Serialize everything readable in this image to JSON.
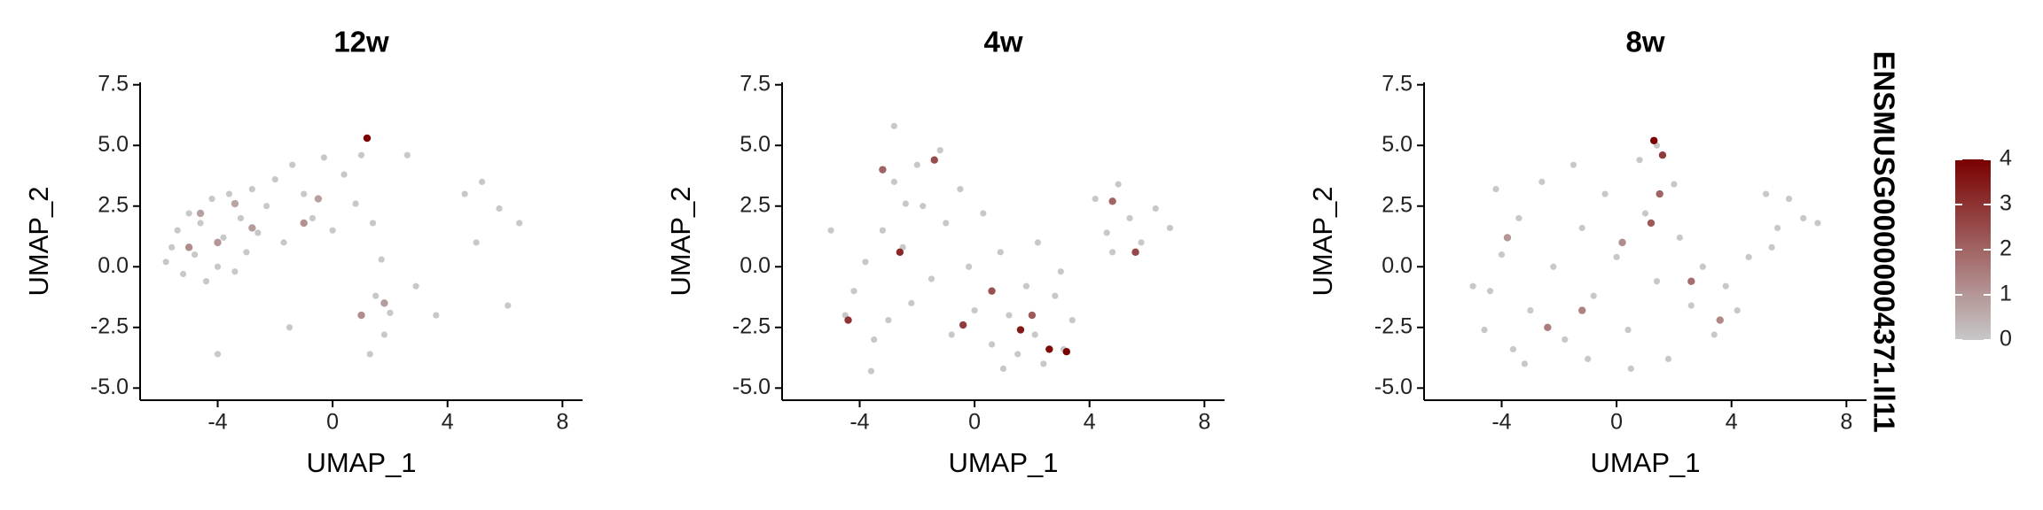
{
  "chart_data": [
    {
      "type": "scatter",
      "title": "12w",
      "xlabel": "UMAP_1",
      "ylabel": "UMAP_2",
      "xlim": [
        -6.7,
        8.7
      ],
      "ylim": [
        -5.5,
        7.6
      ],
      "xticks": [
        -4,
        0,
        4,
        8
      ],
      "yticks": [
        7.5,
        {
          "value": 5,
          "label": "5.0"
        },
        2.5,
        {
          "value": 0,
          "label": "0.0"
        },
        -2.5,
        {
          "value": -5,
          "label": "-5.0"
        }
      ],
      "x": [
        -5.8,
        -5.6,
        -5.4,
        -5.2,
        -5.0,
        -4.8,
        -4.6,
        -4.4,
        -4.2,
        -4.0,
        -3.8,
        -3.6,
        -3.4,
        -3.2,
        -3.0,
        -2.8,
        -2.6,
        -2.3,
        -2.0,
        -1.7,
        -1.4,
        -1.0,
        -0.7,
        -0.3,
        0.0,
        0.4,
        0.8,
        1.0,
        1.4,
        1.7,
        1.5,
        1.8,
        1.3,
        2.0,
        2.9,
        3.6,
        4.6,
        5.2,
        5.8,
        6.5,
        5.0,
        -4.0,
        -1.5,
        2.6,
        6.1,
        -4.6,
        -4.0,
        -3.4,
        -5.0,
        -2.8,
        -1.0,
        1.2,
        1.0,
        1.8,
        -0.5
      ],
      "y": [
        0.2,
        0.8,
        1.5,
        -0.3,
        2.2,
        0.5,
        1.8,
        -0.6,
        2.8,
        0.0,
        1.2,
        3.0,
        -0.2,
        2.0,
        0.6,
        3.2,
        1.4,
        2.5,
        3.6,
        1.0,
        4.2,
        3.0,
        2.0,
        4.5,
        1.5,
        3.8,
        2.6,
        4.6,
        1.8,
        0.3,
        -1.2,
        -2.8,
        -3.6,
        -1.9,
        -0.8,
        -2.0,
        3.0,
        3.5,
        2.4,
        1.8,
        1.0,
        -3.6,
        -2.5,
        4.6,
        -1.6,
        2.2,
        1.0,
        2.6,
        0.8,
        1.6,
        1.8,
        5.3,
        -2.0,
        -1.5,
        2.8
      ],
      "values": [
        0,
        0,
        0,
        0,
        0,
        0,
        0,
        0,
        0,
        0,
        0,
        0,
        0,
        0,
        0,
        0,
        0,
        0,
        0,
        0,
        0,
        0,
        0,
        0,
        0,
        0,
        0,
        0,
        0,
        0,
        0,
        0,
        0,
        0,
        0,
        0,
        0,
        0,
        0,
        0,
        0,
        0,
        0,
        0,
        0,
        0.8,
        1.0,
        0.7,
        1.2,
        0.9,
        1.1,
        4.0,
        1.2,
        0.9,
        0.8
      ]
    },
    {
      "type": "scatter",
      "title": "4w",
      "xlabel": "UMAP_1",
      "ylabel": "UMAP_2",
      "xlim": [
        -6.7,
        8.7
      ],
      "ylim": [
        -5.5,
        7.6
      ],
      "xticks": [
        -4,
        0,
        4,
        8
      ],
      "yticks": [
        7.5,
        {
          "value": 5,
          "label": "5.0"
        },
        2.5,
        {
          "value": 0,
          "label": "0.0"
        },
        -2.5,
        {
          "value": -5,
          "label": "-5.0"
        }
      ],
      "x": [
        -4.5,
        -4.2,
        -3.8,
        -3.5,
        -3.2,
        -3.0,
        -2.8,
        -2.5,
        -2.2,
        -2.0,
        -1.8,
        -1.5,
        -1.2,
        -1.0,
        -0.8,
        -0.5,
        -0.2,
        0.0,
        0.3,
        0.6,
        0.9,
        1.2,
        1.5,
        1.8,
        2.1,
        2.4,
        2.8,
        3.1,
        3.4,
        3.0,
        4.2,
        4.6,
        5.0,
        5.4,
        5.8,
        6.3,
        6.8,
        4.8,
        -2.8,
        -5.0,
        -3.6,
        1.0,
        2.2,
        -2.4,
        -4.4,
        -3.2,
        -1.4,
        -2.6,
        -0.4,
        1.6,
        2.6,
        3.2,
        2.0,
        4.8,
        5.6,
        0.6
      ],
      "y": [
        -2.0,
        -1.0,
        0.2,
        -3.0,
        1.5,
        -2.2,
        3.5,
        0.8,
        -1.5,
        4.2,
        2.5,
        -0.5,
        4.8,
        1.8,
        -2.8,
        3.2,
        0.0,
        -1.8,
        2.2,
        -3.2,
        0.6,
        -2.0,
        -3.6,
        -0.8,
        -2.8,
        -4.0,
        -1.2,
        -3.4,
        -2.2,
        -0.2,
        2.8,
        1.4,
        3.4,
        2.0,
        1.0,
        2.4,
        1.6,
        0.6,
        5.8,
        1.5,
        -4.3,
        -4.2,
        1.0,
        2.6,
        -2.2,
        4.0,
        4.4,
        0.6,
        -2.4,
        -2.6,
        -3.4,
        -3.5,
        -2.0,
        2.7,
        0.6,
        -1.0
      ],
      "values": [
        0,
        0,
        0,
        0,
        0,
        0,
        0,
        0,
        0,
        0,
        0,
        0,
        0,
        0,
        0,
        0,
        0,
        0,
        0,
        0,
        0,
        0,
        0,
        0,
        0,
        0,
        0,
        0,
        0,
        0,
        0,
        0,
        0,
        0,
        0,
        0,
        0,
        0,
        0,
        0,
        0,
        0,
        0,
        0,
        3.0,
        2.0,
        2.5,
        3.2,
        2.8,
        3.5,
        3.8,
        4.0,
        2.2,
        2.0,
        2.6,
        2.4
      ]
    },
    {
      "type": "scatter",
      "title": "8w",
      "xlabel": "UMAP_1",
      "ylabel": "UMAP_2",
      "xlim": [
        -6.7,
        8.7
      ],
      "ylim": [
        -5.5,
        7.6
      ],
      "xticks": [
        -4,
        0,
        4,
        8
      ],
      "yticks": [
        7.5,
        {
          "value": 5,
          "label": "5.0"
        },
        2.5,
        {
          "value": 0,
          "label": "0.0"
        },
        -2.5,
        {
          "value": -5,
          "label": "-5.0"
        }
      ],
      "x": [
        -4.6,
        -4.4,
        -4.0,
        -3.6,
        -3.4,
        -3.0,
        -2.6,
        -2.2,
        -1.8,
        -1.5,
        -1.2,
        -0.8,
        -0.4,
        0.0,
        0.4,
        0.8,
        1.0,
        1.4,
        1.8,
        2.2,
        2.6,
        3.0,
        3.4,
        3.8,
        4.2,
        2.0,
        -3.2,
        0.5,
        5.2,
        5.6,
        6.0,
        6.5,
        7.0,
        5.4,
        -5.0,
        -4.2,
        -1.0,
        1.4,
        4.6,
        1.3,
        1.6,
        1.5,
        -2.4,
        0.2,
        2.6,
        -3.8,
        3.6,
        -1.2,
        1.2
      ],
      "y": [
        -2.6,
        -1.0,
        0.5,
        -3.4,
        2.0,
        -1.8,
        3.5,
        0.0,
        -3.0,
        4.2,
        1.6,
        -1.2,
        3.0,
        0.4,
        -2.6,
        4.4,
        2.2,
        -0.6,
        -3.8,
        1.2,
        -1.6,
        0.0,
        -2.8,
        -0.8,
        -1.8,
        3.4,
        -4.0,
        -4.2,
        3.0,
        1.6,
        2.8,
        2.0,
        1.8,
        0.8,
        -0.8,
        3.2,
        -3.8,
        5.0,
        0.4,
        5.2,
        4.6,
        3.0,
        -2.5,
        1.0,
        -0.6,
        1.2,
        -2.2,
        -1.8,
        1.8
      ],
      "values": [
        0,
        0,
        0,
        0,
        0,
        0,
        0,
        0,
        0,
        0,
        0,
        0,
        0,
        0,
        0,
        0,
        0,
        0,
        0,
        0,
        0,
        0,
        0,
        0,
        0,
        0,
        0,
        0,
        0,
        0,
        0,
        0,
        0,
        0,
        0,
        0,
        0,
        0,
        0,
        4.0,
        2.8,
        2.0,
        1.5,
        1.2,
        1.8,
        1.0,
        1.3,
        1.4,
        2.2
      ]
    }
  ],
  "colorbar": {
    "title": "ENSMUSG00000004371.Il11",
    "lim": [
      0,
      4
    ],
    "ticks": [
      0,
      1,
      2,
      3,
      4
    ],
    "colors": [
      "#c8c8c8",
      "#7a0000"
    ]
  }
}
